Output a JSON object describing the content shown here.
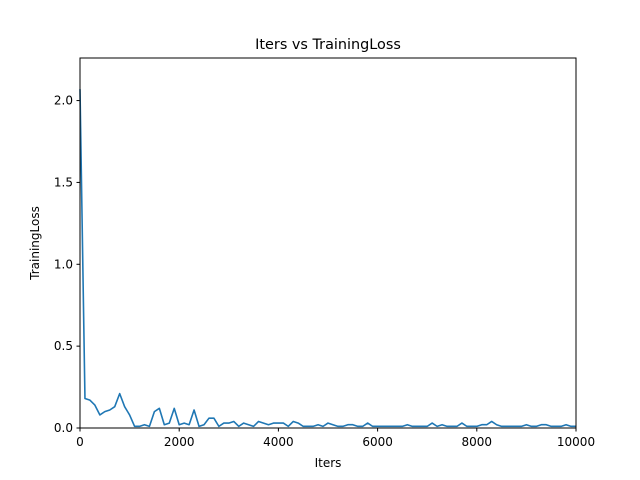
{
  "chart_data": {
    "type": "line",
    "title": "Iters vs TrainingLoss",
    "xlabel": "Iters",
    "ylabel": "TrainingLoss",
    "xlim": [
      0,
      10000
    ],
    "ylim": [
      0,
      2.26
    ],
    "xticks": [
      0,
      2000,
      4000,
      6000,
      8000,
      10000
    ],
    "yticks": [
      0.0,
      0.5,
      1.0,
      1.5,
      2.0
    ],
    "xtick_labels": [
      "0",
      "2000",
      "4000",
      "6000",
      "8000",
      "10000"
    ],
    "ytick_labels": [
      "0.0",
      "0.5",
      "1.0",
      "1.5",
      "2.0"
    ],
    "grid": false,
    "series": [
      {
        "color": "#1f77b4",
        "x": [
          0,
          100,
          200,
          300,
          400,
          500,
          600,
          700,
          800,
          900,
          1000,
          1100,
          1200,
          1300,
          1400,
          1500,
          1600,
          1700,
          1800,
          1900,
          2000,
          2100,
          2200,
          2300,
          2400,
          2500,
          2600,
          2700,
          2800,
          2900,
          3000,
          3100,
          3200,
          3300,
          3400,
          3500,
          3600,
          3700,
          3800,
          3900,
          4000,
          4100,
          4200,
          4300,
          4400,
          4500,
          4600,
          4700,
          4800,
          4900,
          5000,
          5100,
          5200,
          5300,
          5400,
          5500,
          5600,
          5700,
          5800,
          5900,
          6000,
          6100,
          6200,
          6300,
          6400,
          6500,
          6600,
          6700,
          6800,
          6900,
          7000,
          7100,
          7200,
          7300,
          7400,
          7500,
          7600,
          7700,
          7800,
          7900,
          8000,
          8100,
          8200,
          8300,
          8400,
          8500,
          8600,
          8700,
          8800,
          8900,
          9000,
          9100,
          9200,
          9300,
          9400,
          9500,
          9600,
          9700,
          9800,
          9900,
          10000
        ],
        "y": [
          2.07,
          0.18,
          0.17,
          0.14,
          0.08,
          0.1,
          0.11,
          0.13,
          0.21,
          0.13,
          0.08,
          0.01,
          0.01,
          0.02,
          0.01,
          0.1,
          0.12,
          0.02,
          0.03,
          0.12,
          0.02,
          0.03,
          0.02,
          0.11,
          0.01,
          0.02,
          0.06,
          0.06,
          0.01,
          0.03,
          0.03,
          0.04,
          0.01,
          0.03,
          0.02,
          0.01,
          0.04,
          0.03,
          0.02,
          0.03,
          0.03,
          0.03,
          0.01,
          0.04,
          0.03,
          0.01,
          0.01,
          0.01,
          0.02,
          0.01,
          0.03,
          0.02,
          0.01,
          0.01,
          0.02,
          0.02,
          0.01,
          0.01,
          0.03,
          0.01,
          0.01,
          0.01,
          0.01,
          0.01,
          0.01,
          0.01,
          0.02,
          0.01,
          0.01,
          0.01,
          0.01,
          0.03,
          0.01,
          0.02,
          0.01,
          0.01,
          0.01,
          0.03,
          0.01,
          0.01,
          0.01,
          0.02,
          0.02,
          0.04,
          0.02,
          0.01,
          0.01,
          0.01,
          0.01,
          0.01,
          0.02,
          0.01,
          0.01,
          0.02,
          0.02,
          0.01,
          0.01,
          0.01,
          0.02,
          0.01,
          0.01
        ]
      }
    ]
  }
}
